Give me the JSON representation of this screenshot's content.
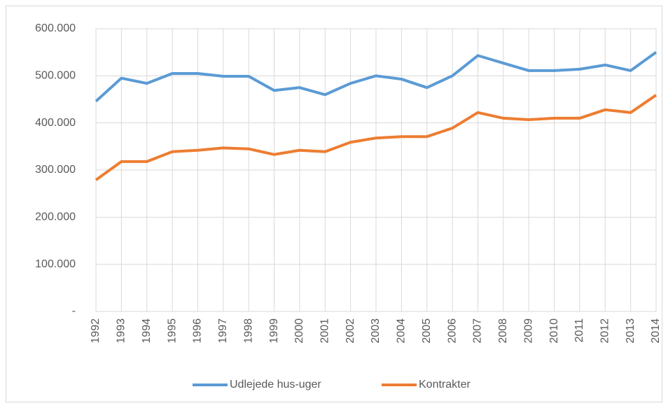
{
  "chart_data": {
    "type": "line",
    "categories": [
      "1992",
      "1993",
      "1994",
      "1995",
      "1996",
      "1997",
      "1998",
      "1999",
      "2000",
      "2001",
      "2002",
      "2003",
      "2004",
      "2005",
      "2006",
      "2007",
      "2008",
      "2009",
      "2010",
      "2011",
      "2012",
      "2013",
      "2014"
    ],
    "series": [
      {
        "name": "Udlejede hus-uger",
        "color": "#5b9bd5",
        "values": [
          446000,
          495000,
          484000,
          505000,
          505000,
          499000,
          499000,
          469000,
          475000,
          460000,
          484000,
          500000,
          493000,
          475000,
          500000,
          543000,
          527000,
          511000,
          511000,
          514000,
          523000,
          511000,
          550000
        ]
      },
      {
        "name": "Kontrakter",
        "color": "#ed7d31",
        "values": [
          279000,
          318000,
          318000,
          339000,
          342000,
          347000,
          345000,
          333000,
          342000,
          339000,
          359000,
          368000,
          371000,
          371000,
          389000,
          422000,
          410000,
          407000,
          410000,
          410000,
          428000,
          422000,
          459000
        ]
      }
    ],
    "ylim": [
      0,
      600000
    ],
    "yticks": [
      {
        "value": 0,
        "label": "-"
      },
      {
        "value": 100000,
        "label": "100.000"
      },
      {
        "value": 200000,
        "label": "200.000"
      },
      {
        "value": 300000,
        "label": "300.000"
      },
      {
        "value": 400000,
        "label": "400.000"
      },
      {
        "value": 500000,
        "label": "500.000"
      },
      {
        "value": 600000,
        "label": "600.000"
      }
    ],
    "grid": true,
    "legend": "bottom"
  }
}
